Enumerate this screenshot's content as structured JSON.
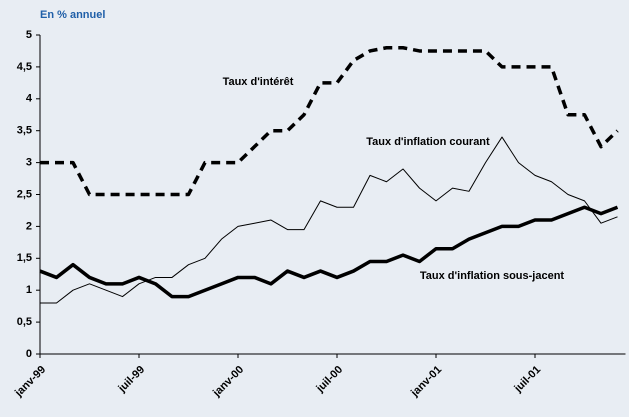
{
  "chart_data": {
    "type": "line",
    "y_axis_label": "En % annuel",
    "categories": [
      "janv-99",
      null,
      null,
      null,
      null,
      null,
      "juil-99",
      null,
      null,
      null,
      null,
      null,
      "janv-00",
      null,
      null,
      null,
      null,
      null,
      "juil-00",
      null,
      null,
      null,
      null,
      null,
      "janv-01",
      null,
      null,
      null,
      null,
      null,
      "juil-01",
      null,
      null,
      null,
      null,
      null
    ],
    "series": [
      {
        "name": "Taux d'intérêt",
        "color": "#000000",
        "style": "dashed",
        "values": [
          3,
          3,
          3,
          2.5,
          2.5,
          2.5,
          2.5,
          2.5,
          2.5,
          2.5,
          3,
          3,
          3,
          3.25,
          3.5,
          3.5,
          3.75,
          4.25,
          4.25,
          4.6,
          4.75,
          4.8,
          4.8,
          4.75,
          4.75,
          4.75,
          4.75,
          4.75,
          4.5,
          4.5,
          4.5,
          4.5,
          3.75,
          3.75,
          3.25,
          3.5
        ]
      },
      {
        "name": "Taux d'inflation courant",
        "color": "#000000",
        "style": "thin",
        "values": [
          0.8,
          0.8,
          1,
          1.1,
          1,
          0.9,
          1.1,
          1.2,
          1.2,
          1.4,
          1.5,
          1.8,
          2,
          2.05,
          2.1,
          1.95,
          1.95,
          2.4,
          2.3,
          2.3,
          2.8,
          2.7,
          2.9,
          2.6,
          2.4,
          2.6,
          2.55,
          3,
          3.4,
          3,
          2.8,
          2.7,
          2.5,
          2.4,
          2.05,
          2.15
        ]
      },
      {
        "name": "Taux d'inflation sous-jacent",
        "color": "#000000",
        "style": "thick",
        "values": [
          1.3,
          1.2,
          1.4,
          1.2,
          1.1,
          1.1,
          1.2,
          1.1,
          0.9,
          0.9,
          1,
          1.1,
          1.2,
          1.2,
          1.1,
          1.3,
          1.2,
          1.3,
          1.2,
          1.3,
          1.45,
          1.45,
          1.55,
          1.45,
          1.65,
          1.65,
          1.8,
          1.9,
          2,
          2,
          2.1,
          2.1,
          2.2,
          2.3,
          2.2,
          2.3
        ]
      }
    ],
    "ylim": [
      0,
      5
    ],
    "yticks": [
      0,
      {
        "value": 0.5,
        "label": "0,5"
      },
      1,
      {
        "value": 1.5,
        "label": "1,5"
      },
      2,
      {
        "value": 2.5,
        "label": "2,5"
      },
      3,
      {
        "value": 3.5,
        "label": "3,5"
      },
      4,
      {
        "value": 4.5,
        "label": "4,5"
      },
      5
    ],
    "grid": false
  }
}
